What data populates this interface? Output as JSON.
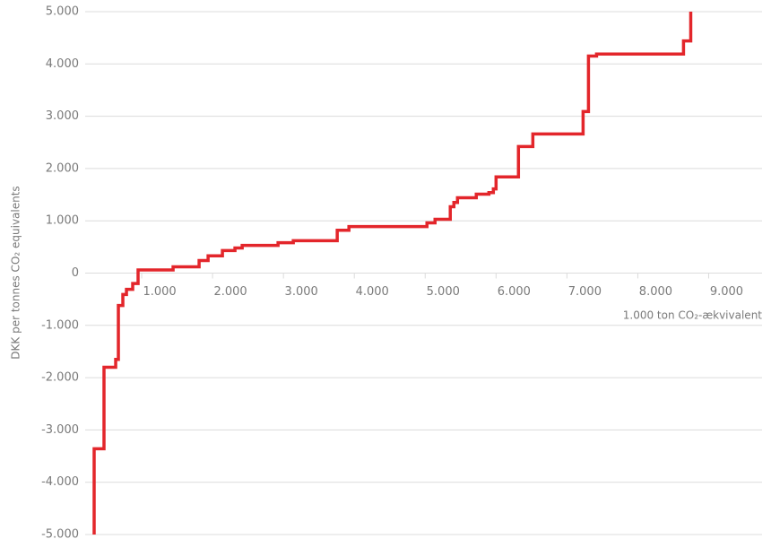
{
  "chart_data": {
    "type": "step",
    "y_label": "DKK per tonnes CO₂ equivalents",
    "x_label": "1.000 ton CO₂-ækvivalent",
    "color": "#e3262b",
    "x": [
      76,
      76,
      215,
      380,
      418,
      481,
      532,
      620,
      696,
      1190,
      1557,
      1684,
      1886,
      2063,
      2165,
      2671,
      2886,
      3506,
      3671,
      4772,
      4886,
      5101,
      5152,
      5203,
      5468,
      5646,
      5709,
      5747,
      6063,
      6266,
      6975,
      7051,
      7165,
      8392,
      8494
    ],
    "values": [
      -5000,
      -3360,
      -1800,
      -1650,
      -620,
      -410,
      -310,
      -200,
      60,
      120,
      240,
      330,
      430,
      480,
      530,
      580,
      620,
      820,
      890,
      960,
      1030,
      1270,
      1350,
      1440,
      1510,
      1540,
      1610,
      1840,
      2420,
      2660,
      3090,
      4150,
      4190,
      4440,
      5000
    ],
    "xlim": [
      0,
      9500
    ],
    "ylim": [
      -5000,
      5000
    ],
    "xticks": [
      {
        "value": 1000,
        "label": "1.000"
      },
      {
        "value": 2000,
        "label": "2.000"
      },
      {
        "value": 3000,
        "label": "3.000"
      },
      {
        "value": 4000,
        "label": "4.000"
      },
      {
        "value": 5000,
        "label": "5.000"
      },
      {
        "value": 6000,
        "label": "6.000"
      },
      {
        "value": 7000,
        "label": "7.000"
      },
      {
        "value": 8000,
        "label": "8.000"
      },
      {
        "value": 9000,
        "label": "9.000"
      }
    ],
    "yticks": [
      {
        "value": -5000,
        "label": "-5.000"
      },
      {
        "value": -4000,
        "label": "-4.000"
      },
      {
        "value": -3000,
        "label": "-3.000"
      },
      {
        "value": -2000,
        "label": "-2.000"
      },
      {
        "value": -1000,
        "label": "-1.000"
      },
      0,
      {
        "value": 1000,
        "label": "1.000"
      },
      {
        "value": 2000,
        "label": "2.000"
      },
      {
        "value": 3000,
        "label": "3.000"
      },
      {
        "value": 4000,
        "label": "4.000"
      },
      {
        "value": 5000,
        "label": "5.000"
      }
    ],
    "grid": true
  }
}
